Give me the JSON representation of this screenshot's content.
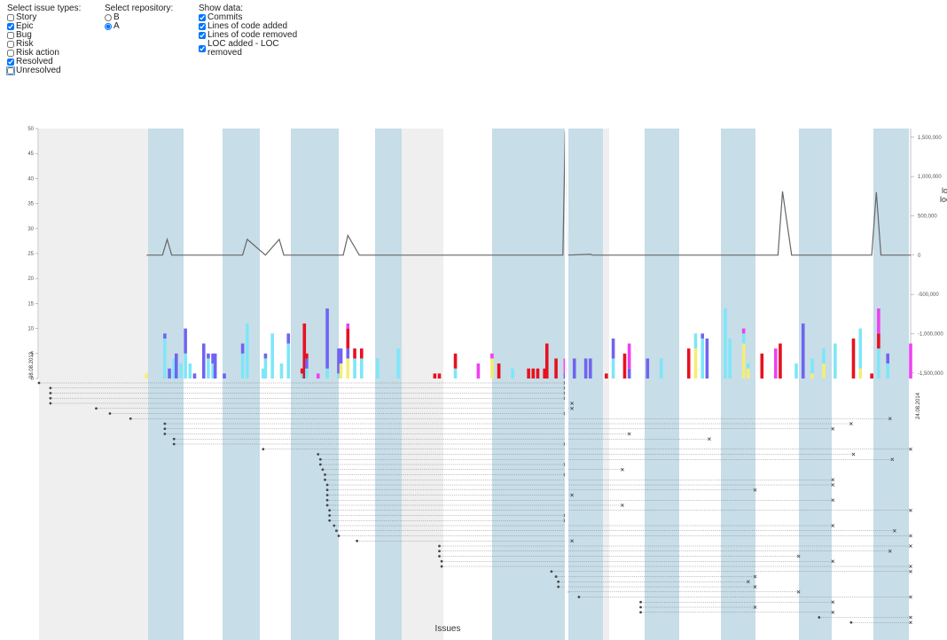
{
  "controls": {
    "issue_types": {
      "label": "Select issue types:",
      "options": [
        {
          "label": "Story",
          "checked": false
        },
        {
          "label": "Epic",
          "checked": true
        },
        {
          "label": "Bug",
          "checked": false
        },
        {
          "label": "Risk",
          "checked": false
        },
        {
          "label": "Risk action",
          "checked": false
        },
        {
          "label": "Resolved",
          "checked": true
        },
        {
          "label": "Unresolved",
          "checked": false
        }
      ]
    },
    "repository": {
      "label": "Select repository:",
      "options": [
        {
          "label": "B",
          "checked": false
        },
        {
          "label": "A",
          "checked": true
        }
      ]
    },
    "show_data": {
      "label": "Show data:",
      "options": [
        {
          "label": "Commits",
          "checked": true
        },
        {
          "label": "Lines of code added",
          "checked": true
        },
        {
          "label": "Lines of code removed",
          "checked": true
        },
        {
          "label": "LOC added - LOC removed",
          "checked": true
        }
      ]
    }
  },
  "chart_data": [
    {
      "type": "bar",
      "stacked": true,
      "xlim": [
        0,
        381
      ],
      "ylim": [
        0,
        50
      ],
      "yticks": [
        0,
        5,
        10,
        15,
        20,
        25,
        30,
        35,
        40,
        45,
        50
      ],
      "x": [
        47,
        55,
        57,
        59,
        60,
        62,
        64,
        66,
        68,
        72,
        74,
        76,
        77,
        81,
        89,
        91,
        98,
        99,
        102,
        106,
        109,
        115,
        116,
        117,
        122,
        126,
        131,
        132,
        135,
        138,
        141,
        148,
        157,
        173,
        175,
        182,
        192,
        198,
        201,
        207,
        214,
        216,
        218,
        221,
        222,
        226,
        230,
        234,
        239,
        241,
        248,
        251,
        256,
        258,
        266,
        272,
        284,
        287,
        290,
        292,
        300,
        302,
        308,
        310,
        316,
        322,
        324,
        331,
        334,
        338,
        343,
        348,
        356,
        359,
        364,
        367,
        371,
        381
      ],
      "series": [
        {
          "color": "#f5ee76",
          "values": [
            1,
            0,
            0,
            0,
            0,
            0,
            0,
            0,
            0,
            0,
            0,
            0,
            0,
            0,
            0,
            0,
            0,
            0,
            0,
            0,
            0,
            0,
            0,
            0,
            0,
            0,
            0,
            3,
            4,
            0,
            0,
            0,
            0,
            0,
            0,
            0,
            0,
            4,
            0,
            0,
            0,
            0,
            0,
            0,
            0,
            0,
            0,
            0,
            0,
            0,
            0,
            0,
            0,
            0,
            0,
            0,
            0,
            6,
            0,
            0,
            0,
            0,
            7,
            2,
            0,
            0,
            0,
            0,
            0,
            1,
            3,
            0,
            0,
            2,
            0,
            0,
            0,
            0
          ]
        },
        {
          "color": "#7ee6f8",
          "values": [
            0,
            8,
            0,
            4,
            0,
            3,
            5,
            3,
            0,
            0,
            4,
            3,
            0,
            0,
            5,
            11,
            2,
            4,
            9,
            3,
            7,
            1,
            0,
            2,
            0,
            2,
            1,
            0,
            0,
            4,
            4,
            4,
            6,
            0,
            0,
            2,
            0,
            0,
            0,
            2,
            0,
            0,
            0,
            0,
            0,
            0,
            0,
            0,
            0,
            0,
            0,
            4,
            0,
            0,
            0,
            4,
            0,
            3,
            8,
            0,
            14,
            8,
            2,
            1,
            0,
            0,
            0,
            3,
            0,
            3,
            3,
            7,
            0,
            8,
            0,
            6,
            3,
            0
          ]
        },
        {
          "color": "#7064f0",
          "values": [
            0,
            1,
            2,
            0,
            5,
            0,
            5,
            0,
            1,
            7,
            1,
            2,
            5,
            1,
            2,
            0,
            0,
            1,
            0,
            0,
            2,
            0,
            0,
            2,
            0,
            12,
            5,
            3,
            2,
            0,
            0,
            0,
            0,
            0,
            0,
            0,
            0,
            0,
            0,
            0,
            0,
            0,
            0,
            0,
            0,
            0,
            1,
            4,
            4,
            4,
            0,
            4,
            0,
            2,
            4,
            0,
            0,
            0,
            1,
            8,
            0,
            0,
            0,
            0,
            0,
            0,
            0,
            0,
            11,
            0,
            0,
            0,
            0,
            0,
            0,
            0,
            2,
            0
          ]
        },
        {
          "color": "#e81020",
          "values": [
            0,
            0,
            0,
            0,
            0,
            0,
            0,
            0,
            0,
            0,
            0,
            0,
            0,
            0,
            0,
            0,
            0,
            0,
            0,
            0,
            0,
            1,
            11,
            1,
            0,
            0,
            0,
            0,
            4,
            2,
            2,
            0,
            0,
            1,
            1,
            3,
            0,
            0,
            3,
            0,
            2,
            2,
            2,
            2,
            7,
            4,
            0,
            0,
            0,
            0,
            1,
            0,
            5,
            0,
            0,
            0,
            6,
            0,
            0,
            0,
            0,
            0,
            0,
            0,
            5,
            0,
            7,
            0,
            0,
            0,
            0,
            0,
            8,
            0,
            1,
            3,
            0,
            0
          ]
        },
        {
          "color": "#f040f0",
          "values": [
            0,
            0,
            0,
            0,
            0,
            0,
            0,
            0,
            0,
            0,
            0,
            0,
            0,
            0,
            0,
            0,
            0,
            0,
            0,
            0,
            0,
            0,
            0,
            0,
            1,
            0,
            0,
            0,
            1,
            0,
            0,
            0,
            0,
            0,
            0,
            0,
            3,
            1,
            0,
            0,
            0,
            0,
            0,
            0,
            0,
            0,
            3,
            0,
            0,
            0,
            0,
            0,
            0,
            5,
            0,
            0,
            0,
            0,
            0,
            0,
            0,
            0,
            1,
            0,
            0,
            6,
            0,
            0,
            0,
            0,
            0,
            0,
            0,
            0,
            0,
            5,
            0,
            7
          ]
        }
      ]
    },
    {
      "type": "line",
      "xlim": [
        0,
        381
      ],
      "y2lim": [
        -1570000,
        1610000
      ],
      "y2ticks": [
        {
          "value": 1500000,
          "label": "1,500,000"
        },
        {
          "value": 1000000,
          "label": "1,000,000"
        },
        {
          "value": 500000,
          "label": "500,000"
        },
        0,
        {
          "value": -500000,
          "label": "-500,000"
        },
        {
          "value": -1000000,
          "label": "-1,000,000"
        },
        {
          "value": -1500000,
          "label": "-1,500,000"
        }
      ],
      "y2label": [
        "lo",
        "loc"
      ],
      "series": [
        {
          "color": "#666666",
          "axis": "y2",
          "x": [
            47,
            54,
            56,
            58,
            89,
            91,
            99,
            105,
            107,
            133,
            135,
            140,
            229,
            230,
            231,
            241,
            242,
            323,
            325,
            329,
            364,
            366,
            368,
            381
          ],
          "values": [
            0,
            0,
            200000,
            0,
            0,
            200000,
            0,
            200000,
            0,
            0,
            250000,
            0,
            0,
            1580000,
            0,
            10000,
            0,
            0,
            810000,
            0,
            0,
            800000,
            0,
            0
          ]
        }
      ]
    },
    {
      "type": "gantt",
      "xlim": [
        0,
        381
      ],
      "xlabel": "Issues",
      "xticks": [
        {
          "value": 0,
          "label": "08.08.2013"
        },
        {
          "value": 381,
          "label": "24.08.2014"
        }
      ],
      "start": [
        0,
        5,
        5,
        5,
        5,
        25,
        31,
        40,
        55,
        55,
        55,
        59,
        59,
        98,
        122,
        123,
        123,
        124,
        125,
        125,
        126,
        126,
        126,
        126,
        126,
        127,
        127,
        127,
        129,
        130,
        131,
        139,
        175,
        175,
        175,
        176,
        176,
        224,
        226,
        227,
        227,
        231,
        236,
        263,
        263,
        263,
        341,
        355
      ],
      "end": [
        230,
        230,
        230,
        230,
        233,
        233,
        230,
        372,
        355,
        347,
        258,
        293,
        230,
        381,
        356,
        373,
        230,
        255,
        230,
        347,
        347,
        313,
        233,
        347,
        255,
        381,
        230,
        230,
        347,
        374,
        381,
        233,
        381,
        372,
        332,
        347,
        381,
        381,
        313,
        310,
        313,
        332,
        381,
        347,
        313,
        347,
        381,
        381
      ]
    }
  ]
}
